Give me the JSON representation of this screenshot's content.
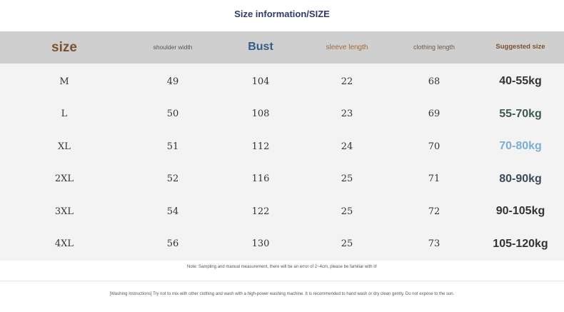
{
  "title": "Size information/SIZE",
  "headers": {
    "size": "size",
    "shoulder": "shoulder width",
    "bust": "Bust",
    "sleeve": "sleeve length",
    "clothing": "clothing length",
    "suggested": "Suggested size"
  },
  "rows": [
    {
      "size": "M",
      "shoulder": "49",
      "bust": "104",
      "sleeve": "22",
      "length": "68",
      "weight": "40-55kg",
      "weight_color": "#333333"
    },
    {
      "size": "L",
      "shoulder": "50",
      "bust": "108",
      "sleeve": "23",
      "length": "69",
      "weight": "55-70kg",
      "weight_color": "#3d5a4a"
    },
    {
      "size": "XL",
      "shoulder": "51",
      "bust": "112",
      "sleeve": "24",
      "length": "70",
      "weight": "70-80kg",
      "weight_color": "#7aaed6"
    },
    {
      "size": "2XL",
      "shoulder": "52",
      "bust": "116",
      "sleeve": "25",
      "length": "71",
      "weight": "80-90kg",
      "weight_color": "#3e4a5c"
    },
    {
      "size": "3XL",
      "shoulder": "54",
      "bust": "122",
      "sleeve": "25",
      "length": "72",
      "weight": "90-105kg",
      "weight_color": "#333333"
    },
    {
      "size": "4XL",
      "shoulder": "56",
      "bust": "130",
      "sleeve": "25",
      "length": "73",
      "weight": "105-120kg",
      "weight_color": "#333333"
    }
  ],
  "note": "Note: Sampling and manual measurement, there will be an error of 2~4cm, please be familiar with it!",
  "washing": "[Washing Instructions] Try not to mix with other clothing and wash with a high-power washing machine. It is recommended to hand wash or dry clean gently. Do not expose to the sun."
}
